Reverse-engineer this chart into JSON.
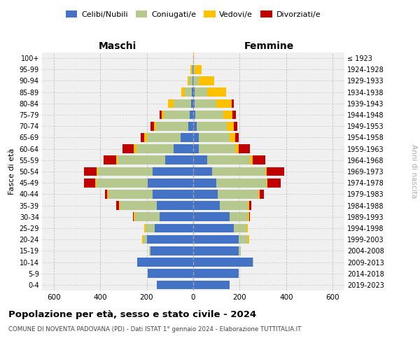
{
  "age_groups": [
    "0-4",
    "5-9",
    "10-14",
    "15-19",
    "20-24",
    "25-29",
    "30-34",
    "35-39",
    "40-44",
    "45-49",
    "50-54",
    "55-59",
    "60-64",
    "65-69",
    "70-74",
    "75-79",
    "80-84",
    "85-89",
    "90-94",
    "95-99",
    "100+"
  ],
  "birth_years": [
    "2019-2023",
    "2014-2018",
    "2009-2013",
    "2004-2008",
    "1999-2003",
    "1994-1998",
    "1989-1993",
    "1984-1988",
    "1979-1983",
    "1974-1978",
    "1969-1973",
    "1964-1968",
    "1959-1963",
    "1954-1958",
    "1949-1953",
    "1944-1948",
    "1939-1943",
    "1934-1938",
    "1929-1933",
    "1924-1928",
    "≤ 1923"
  ],
  "maschi": {
    "celibi": [
      155,
      195,
      240,
      185,
      200,
      165,
      145,
      155,
      175,
      195,
      175,
      120,
      85,
      55,
      20,
      15,
      8,
      5,
      3,
      2,
      0
    ],
    "coniugati": [
      0,
      0,
      0,
      5,
      15,
      40,
      105,
      160,
      190,
      220,
      235,
      205,
      160,
      145,
      140,
      110,
      75,
      30,
      15,
      5,
      0
    ],
    "vedovi": [
      0,
      0,
      0,
      0,
      5,
      5,
      5,
      5,
      5,
      5,
      5,
      5,
      10,
      10,
      10,
      10,
      25,
      15,
      5,
      5,
      0
    ],
    "divorziati": [
      0,
      0,
      0,
      0,
      0,
      0,
      5,
      10,
      10,
      50,
      55,
      55,
      50,
      15,
      15,
      10,
      0,
      0,
      0,
      0,
      0
    ]
  },
  "femmine": {
    "nubili": [
      155,
      195,
      255,
      195,
      195,
      175,
      155,
      115,
      105,
      100,
      80,
      60,
      25,
      25,
      15,
      10,
      5,
      5,
      0,
      0,
      0
    ],
    "coniugate": [
      0,
      0,
      5,
      10,
      40,
      55,
      80,
      120,
      175,
      215,
      230,
      185,
      155,
      130,
      130,
      120,
      95,
      55,
      25,
      5,
      0
    ],
    "vedove": [
      0,
      0,
      0,
      0,
      5,
      5,
      5,
      5,
      5,
      5,
      5,
      10,
      15,
      25,
      30,
      40,
      65,
      80,
      65,
      30,
      2
    ],
    "divorziate": [
      0,
      0,
      0,
      0,
      0,
      0,
      5,
      10,
      20,
      55,
      75,
      55,
      50,
      15,
      15,
      15,
      10,
      0,
      0,
      0,
      0
    ]
  },
  "colors": {
    "celibi": "#4472c4",
    "coniugati": "#b5c98e",
    "vedovi": "#ffc000",
    "divorziati": "#c00000"
  },
  "title": "Popolazione per età, sesso e stato civile - 2024",
  "subtitle": "COMUNE DI NOVENTA PADOVANA (PD) - Dati ISTAT 1° gennaio 2024 - Elaborazione TUTTITALIA.IT",
  "xlabel_left": "Maschi",
  "xlabel_right": "Femmine",
  "ylabel_left": "Fasce di età",
  "ylabel_right": "Anni di nascita",
  "xlim": 650,
  "legend_labels": [
    "Celibi/Nubili",
    "Coniugati/e",
    "Vedovi/e",
    "Divorziati/e"
  ],
  "bg_color": "#ffffff",
  "grid_color": "#bbbbbb"
}
